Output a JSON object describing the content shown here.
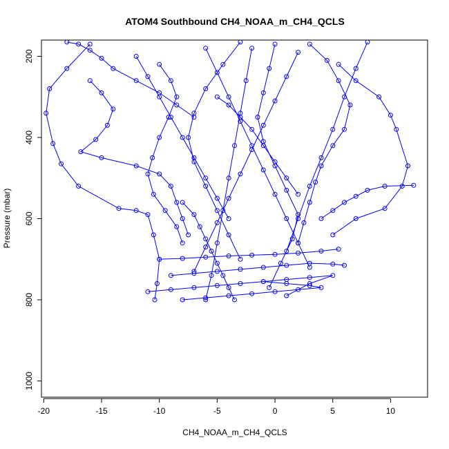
{
  "chart_data": {
    "type": "line",
    "title": "ATOM4 Southbound CH4_NOAA_m_CH4_QCLS",
    "xlabel": "CH4_NOAA_m_CH4_QCLS",
    "ylabel": "Pressure (mbar)",
    "xlim": [
      -20.2,
      13.2
    ],
    "ylim": [
      1040,
      160
    ],
    "y_reversed": true,
    "xticks": [
      -20,
      -15,
      -10,
      -5,
      0,
      5,
      10
    ],
    "yticks": [
      200,
      400,
      600,
      800,
      1000
    ],
    "grid": false,
    "marker": "open-circle",
    "color": "#0000ff",
    "series": [
      {
        "x": [
          -18.0,
          -17.0,
          -16.0,
          -15.0,
          -14.0,
          -12.0,
          -10.0,
          -8.5,
          -7.0
        ],
        "y": [
          165,
          170,
          185,
          205,
          230,
          260,
          290,
          320,
          350
        ]
      },
      {
        "x": [
          -16.0,
          -18.0,
          -19.5,
          -19.8,
          -19.2,
          -18.5,
          -17.0,
          -13.5,
          -12.0,
          -11.0,
          -10.5,
          -10.0,
          -10.2,
          -10.4
        ],
        "y": [
          170,
          230,
          280,
          340,
          415,
          465,
          520,
          575,
          580,
          590,
          640,
          700,
          760,
          800
        ]
      },
      {
        "x": [
          -16.0,
          -15.0,
          -14.0,
          -14.5,
          -15.5,
          -16.8,
          -15.0,
          -12.0,
          -10.0,
          -9.0,
          -8.5,
          -8.0,
          -7.5
        ],
        "y": [
          260,
          290,
          330,
          370,
          405,
          435,
          450,
          470,
          490,
          520,
          560,
          600,
          640
        ]
      },
      {
        "x": [
          -10.0,
          -9.0,
          -8.5,
          -9.2,
          -10.0,
          -10.6,
          -11.0,
          -10.5,
          -9.5,
          -8.5,
          -8.0
        ],
        "y": [
          220,
          260,
          300,
          350,
          400,
          450,
          490,
          540,
          580,
          620,
          660
        ]
      },
      {
        "x": [
          -3.0,
          -4.5,
          -6.0,
          -7.0,
          -7.5,
          -7.0,
          -6.0,
          -5.0,
          -4.0,
          -3.0
        ],
        "y": [
          165,
          220,
          280,
          340,
          400,
          460,
          520,
          580,
          640,
          700
        ]
      },
      {
        "x": [
          3.0,
          4.5,
          5.5,
          6.5,
          6.0,
          5.0,
          4.0,
          3.5,
          3.0,
          2.5,
          2.0
        ],
        "y": [
          170,
          210,
          260,
          320,
          380,
          420,
          470,
          510,
          560,
          610,
          660
        ]
      },
      {
        "x": [
          5.5,
          7.0,
          9.0,
          10.0,
          10.5,
          11.5,
          11.0,
          9.5,
          7.0,
          5.0
        ],
        "y": [
          220,
          260,
          300,
          345,
          380,
          470,
          520,
          575,
          600,
          640
        ]
      },
      {
        "x": [
          8.0,
          7.0,
          6.0,
          5.0,
          4.0,
          3.0,
          2.0,
          1.0
        ],
        "y": [
          165,
          230,
          300,
          380,
          450,
          520,
          600,
          680
        ]
      },
      {
        "x": [
          0.0,
          -0.5,
          -1.0,
          -1.5,
          -1.0,
          0.0,
          1.0,
          2.0,
          1.5,
          0.5,
          -0.5
        ],
        "y": [
          170,
          230,
          290,
          350,
          410,
          470,
          530,
          590,
          650,
          710,
          770
        ]
      },
      {
        "x": [
          -6.0,
          -5.0,
          -4.0,
          -3.0,
          -2.0,
          -1.0,
          0.0,
          1.0,
          2.0,
          3.0
        ],
        "y": [
          180,
          240,
          300,
          360,
          420,
          480,
          540,
          600,
          660,
          720
        ]
      },
      {
        "x": [
          -12.0,
          -11.0,
          -10.0,
          -9.0,
          -8.0,
          -7.0,
          -6.0,
          -5.0,
          -4.0
        ],
        "y": [
          200,
          250,
          300,
          350,
          400,
          450,
          500,
          550,
          600
        ]
      },
      {
        "x": [
          2.0,
          1.0,
          0.0,
          -1.0,
          -2.0,
          -3.0,
          -4.0,
          -5.0,
          -6.0,
          -7.0
        ],
        "y": [
          190,
          250,
          310,
          370,
          430,
          490,
          550,
          610,
          670,
          730
        ]
      },
      {
        "x": [
          -8.0,
          -7.0,
          -6.5,
          -6.0,
          -5.5,
          -5.0,
          -4.5,
          -4.0,
          -3.5
        ],
        "y": [
          560,
          590,
          620,
          650,
          680,
          710,
          740,
          770,
          800
        ]
      },
      {
        "x": [
          -11.0,
          -9.0,
          -7.0,
          -5.0,
          -3.0,
          -1.0,
          1.0,
          3.0,
          5.0,
          3.0,
          1.0
        ],
        "y": [
          780,
          775,
          770,
          765,
          760,
          755,
          750,
          745,
          740,
          760,
          790
        ]
      },
      {
        "x": [
          -9.0,
          -7.0,
          -5.0,
          -3.0,
          -1.0,
          1.0,
          3.0,
          5.0,
          6.0
        ],
        "y": [
          740,
          735,
          730,
          725,
          720,
          715,
          710,
          712,
          715
        ]
      },
      {
        "x": [
          -10.0,
          -8.0,
          -6.0,
          -4.0,
          -2.0,
          0.0,
          2.0,
          4.0,
          5.5
        ],
        "y": [
          700,
          698,
          695,
          692,
          690,
          688,
          685,
          680,
          675
        ]
      },
      {
        "x": [
          -8.0,
          -6.0,
          -4.0,
          -2.0,
          0.0,
          2.0,
          4.0,
          3.0,
          1.0,
          -1.0
        ],
        "y": [
          800,
          795,
          790,
          785,
          780,
          775,
          770,
          765,
          760,
          755
        ]
      },
      {
        "x": [
          4.0,
          5.0,
          6.0,
          7.0,
          8.0,
          9.5,
          12.0
        ],
        "y": [
          600,
          580,
          560,
          545,
          530,
          520,
          518
        ]
      },
      {
        "x": [
          -5.0,
          -4.0,
          -3.0,
          -2.0,
          -1.0,
          0.0,
          1.0,
          2.0
        ],
        "y": [
          300,
          320,
          350,
          380,
          420,
          460,
          500,
          540
        ]
      },
      {
        "x": [
          -2.0,
          -2.5,
          -3.0,
          -3.5,
          -4.0,
          -4.5,
          -5.0,
          -5.5,
          -6.0
        ],
        "y": [
          180,
          260,
          340,
          420,
          500,
          580,
          660,
          740,
          800
        ]
      }
    ]
  }
}
